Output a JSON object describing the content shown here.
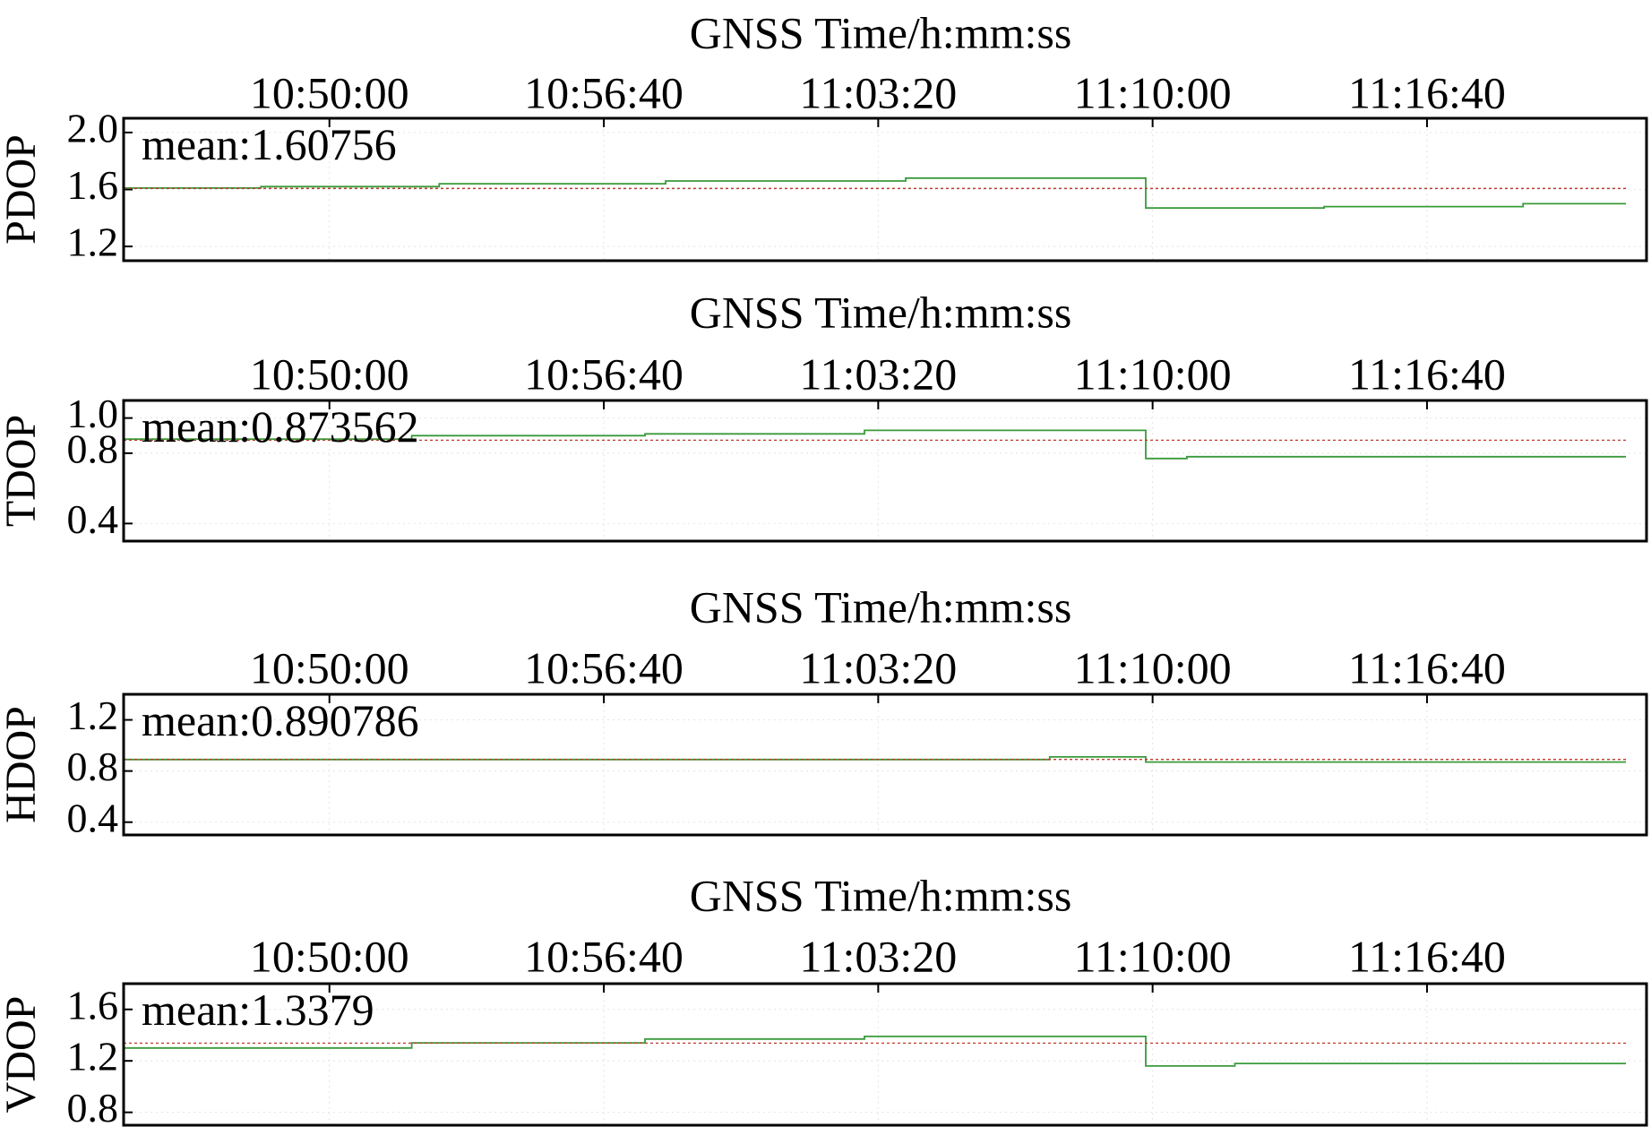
{
  "chart_data": [
    {
      "type": "line",
      "title": "",
      "xlabel": "GNSS Time/h:mm:ss",
      "ylabel": "PDOP",
      "x_ticks": [
        "10:50:00",
        "10:56:40",
        "11:03:20",
        "11:10:00",
        "11:16:40"
      ],
      "xlim": [
        "10:45:00",
        "11:22:00"
      ],
      "ylim": [
        1.1,
        2.1
      ],
      "y_ticks": [
        "1.2",
        "1.6",
        "2.0"
      ],
      "y_tick_values": [
        1.2,
        1.6,
        2.0
      ],
      "grid": true,
      "mean_label": "mean:1.60756",
      "mean": 1.60756,
      "series": [
        {
          "color": "#3a9a3a",
          "x": [
            "10:45:00",
            "10:48:20",
            "10:48:20",
            "10:52:40",
            "10:52:40",
            "10:58:10",
            "10:58:10",
            "11:04:00",
            "11:04:00",
            "11:09:50",
            "11:09:50",
            "11:14:10",
            "11:14:10",
            "11:19:00",
            "11:19:00",
            "11:21:30"
          ],
          "values": [
            1.61,
            1.61,
            1.62,
            1.62,
            1.64,
            1.64,
            1.66,
            1.66,
            1.68,
            1.68,
            1.47,
            1.47,
            1.48,
            1.48,
            1.5,
            1.5
          ]
        },
        {
          "color": "#c0392b",
          "dashed": true,
          "x": [
            "10:45:00",
            "11:21:30"
          ],
          "values": [
            1.60756,
            1.60756
          ]
        }
      ]
    },
    {
      "type": "line",
      "title": "",
      "xlabel": "GNSS Time/h:mm:ss",
      "ylabel": "TDOP",
      "x_ticks": [
        "10:50:00",
        "10:56:40",
        "11:03:20",
        "11:10:00",
        "11:16:40"
      ],
      "xlim": [
        "10:45:00",
        "11:22:00"
      ],
      "ylim": [
        0.3,
        1.1
      ],
      "y_ticks": [
        "0.4",
        "0.8",
        "1.0"
      ],
      "y_tick_values": [
        0.4,
        0.8,
        1.0
      ],
      "grid": true,
      "mean_label": "mean:0.873562",
      "mean": 0.873562,
      "series": [
        {
          "color": "#3a9a3a",
          "x": [
            "10:45:00",
            "10:52:00",
            "10:52:00",
            "10:57:40",
            "10:57:40",
            "11:03:00",
            "11:03:00",
            "11:09:50",
            "11:09:50",
            "11:10:50",
            "11:10:50",
            "11:21:30"
          ],
          "values": [
            0.88,
            0.88,
            0.9,
            0.9,
            0.91,
            0.91,
            0.93,
            0.93,
            0.77,
            0.77,
            0.78,
            0.78
          ]
        },
        {
          "color": "#c0392b",
          "dashed": true,
          "x": [
            "10:45:00",
            "11:21:30"
          ],
          "values": [
            0.873562,
            0.873562
          ]
        }
      ]
    },
    {
      "type": "line",
      "title": "",
      "xlabel": "GNSS Time/h:mm:ss",
      "ylabel": "HDOP",
      "x_ticks": [
        "10:50:00",
        "10:56:40",
        "11:03:20",
        "11:10:00",
        "11:16:40"
      ],
      "xlim": [
        "10:45:00",
        "11:22:00"
      ],
      "ylim": [
        0.3,
        1.4
      ],
      "y_ticks": [
        "0.4",
        "0.8",
        "1.2"
      ],
      "y_tick_values": [
        0.4,
        0.8,
        1.2
      ],
      "grid": true,
      "mean_label": "mean:0.890786",
      "mean": 0.890786,
      "series": [
        {
          "color": "#3a9a3a",
          "x": [
            "10:45:00",
            "11:07:30",
            "11:07:30",
            "11:09:50",
            "11:09:50",
            "11:21:30"
          ],
          "values": [
            0.89,
            0.89,
            0.91,
            0.91,
            0.87,
            0.87
          ]
        },
        {
          "color": "#c0392b",
          "dashed": true,
          "x": [
            "10:45:00",
            "11:21:30"
          ],
          "values": [
            0.890786,
            0.890786
          ]
        }
      ]
    },
    {
      "type": "line",
      "title": "",
      "xlabel": "GNSS Time/h:mm:ss",
      "ylabel": "VDOP",
      "x_ticks": [
        "10:50:00",
        "10:56:40",
        "11:03:20",
        "11:10:00",
        "11:16:40"
      ],
      "xlim": [
        "10:45:00",
        "11:22:00"
      ],
      "ylim": [
        0.7,
        1.8
      ],
      "y_ticks": [
        "0.8",
        "1.2",
        "1.6"
      ],
      "y_tick_values": [
        0.8,
        1.2,
        1.6
      ],
      "grid": true,
      "mean_label": "mean:1.3379",
      "mean": 1.3379,
      "series": [
        {
          "color": "#3a9a3a",
          "x": [
            "10:45:00",
            "10:52:00",
            "10:52:00",
            "10:57:40",
            "10:57:40",
            "11:03:00",
            "11:03:00",
            "11:09:50",
            "11:09:50",
            "11:12:00",
            "11:12:00",
            "11:21:30"
          ],
          "values": [
            1.3,
            1.3,
            1.34,
            1.34,
            1.37,
            1.37,
            1.39,
            1.39,
            1.16,
            1.16,
            1.18,
            1.18
          ]
        },
        {
          "color": "#c0392b",
          "dashed": true,
          "x": [
            "10:45:00",
            "11:21:30"
          ],
          "values": [
            1.3379,
            1.3379
          ]
        }
      ]
    }
  ]
}
